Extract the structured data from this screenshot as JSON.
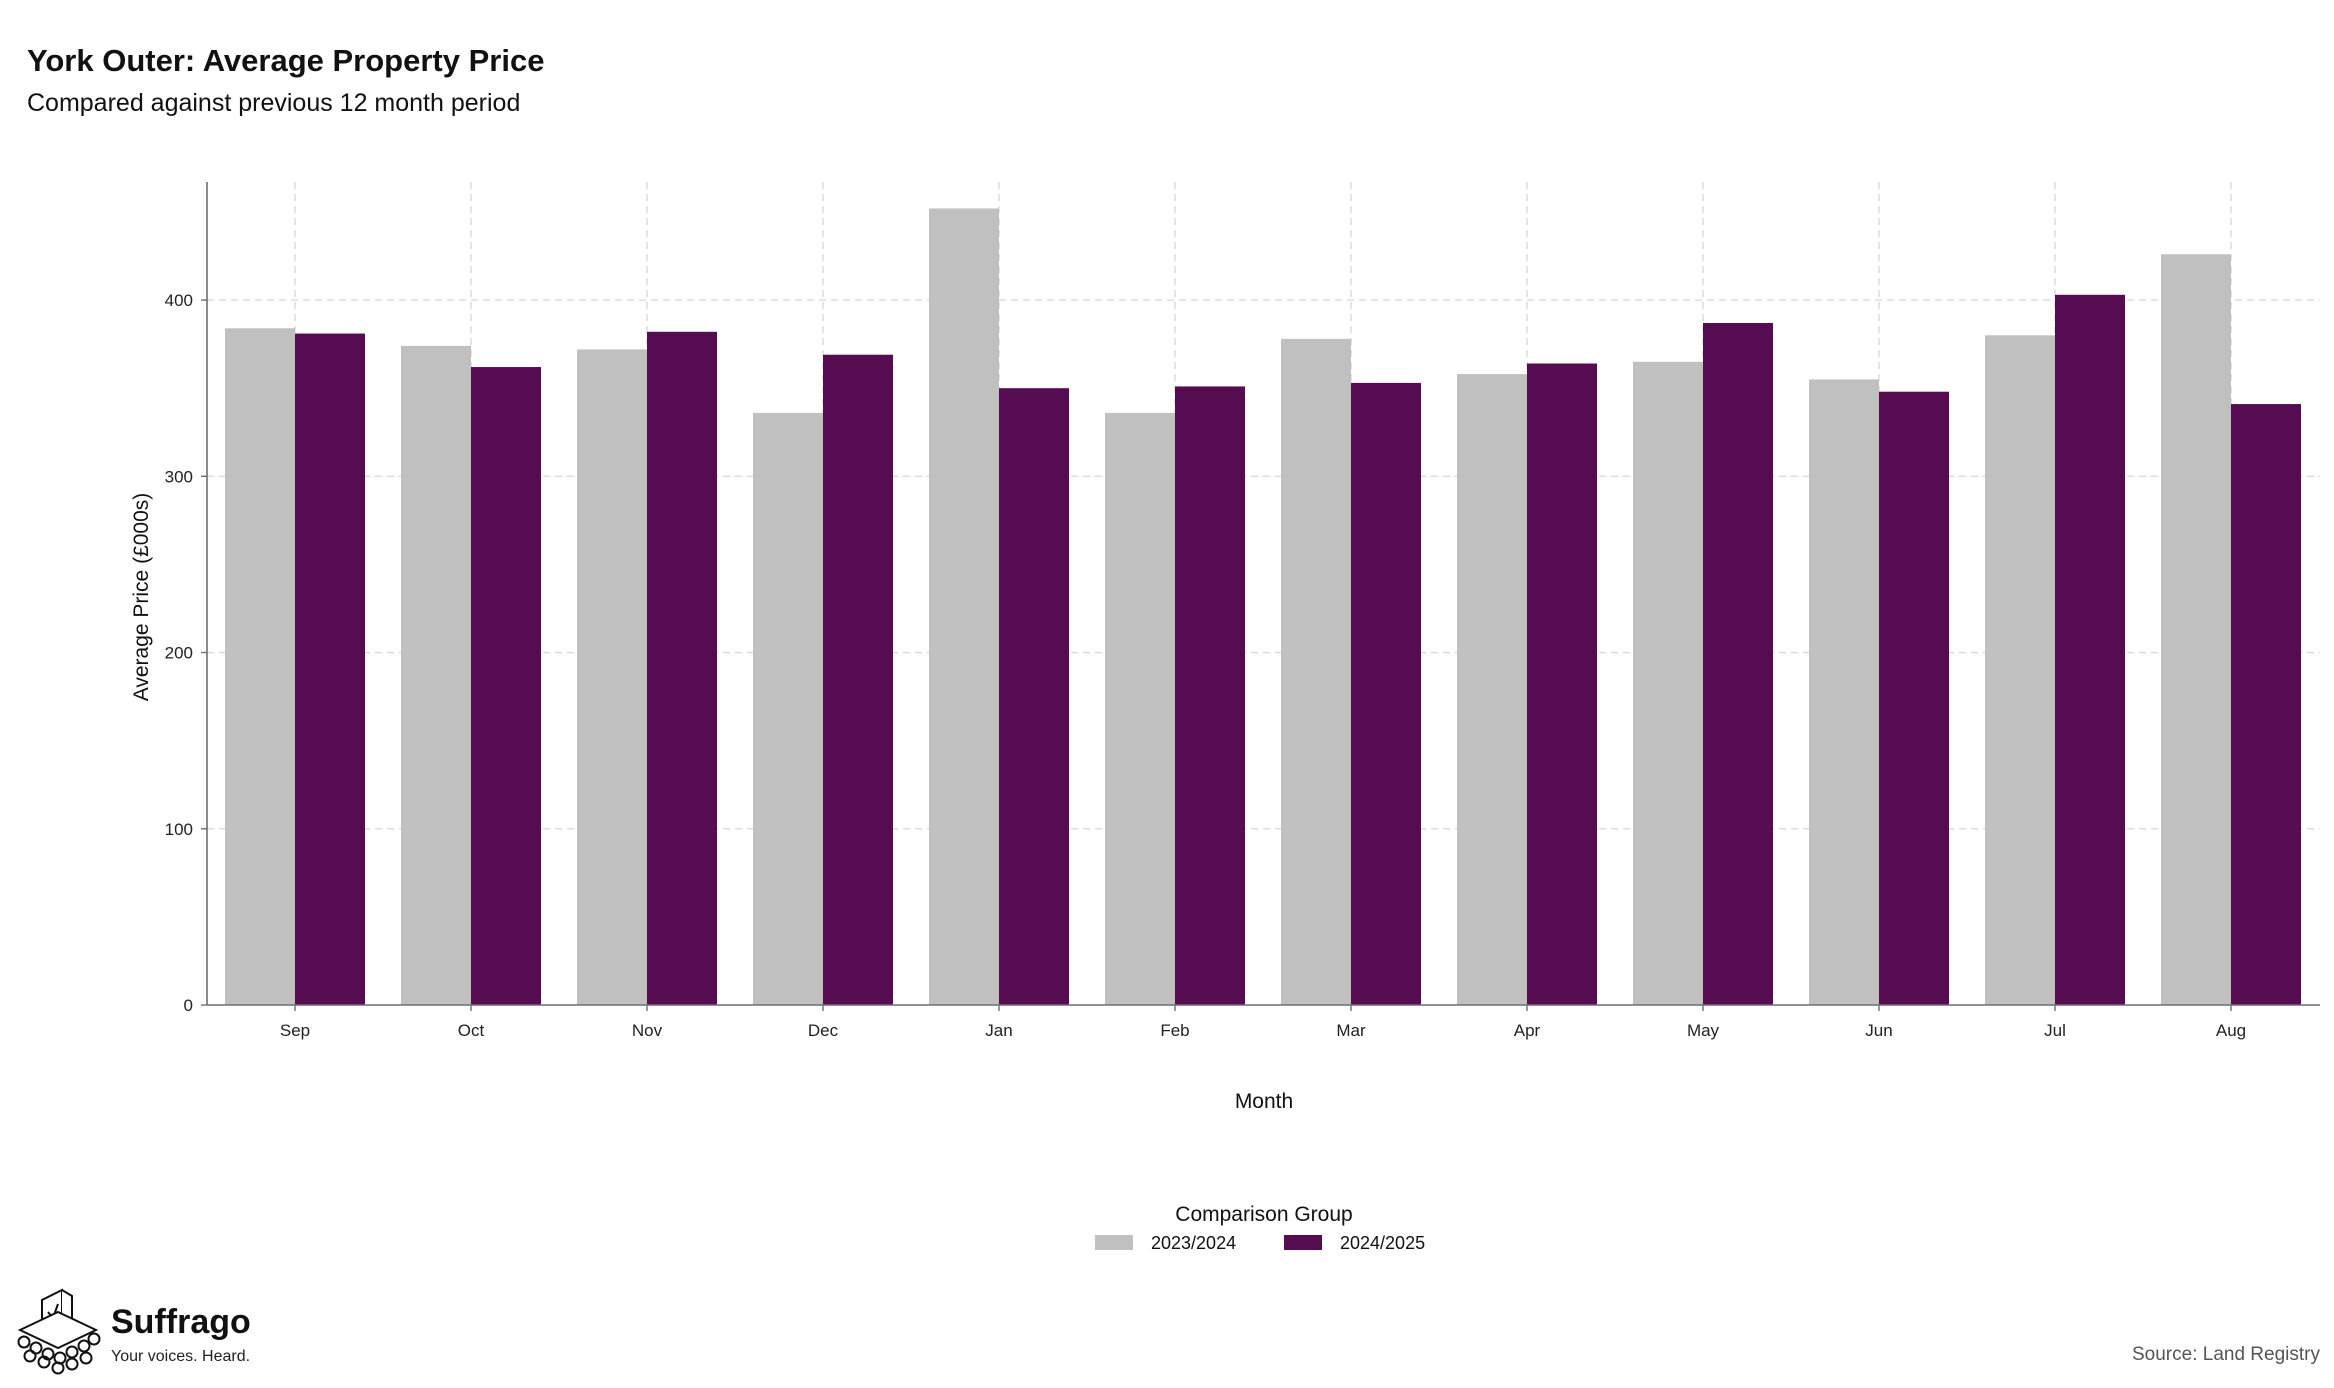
{
  "header": {
    "title": "York Outer: Average Property Price",
    "subtitle": "Compared against previous 12 month period"
  },
  "chart_data": {
    "type": "bar",
    "xlabel": "Month",
    "ylabel": "Average Price (£000s)",
    "categories": [
      "Sep",
      "Oct",
      "Nov",
      "Dec",
      "Jan",
      "Feb",
      "Mar",
      "Apr",
      "May",
      "Jun",
      "Jul",
      "Aug"
    ],
    "series": [
      {
        "name": "2023/2024",
        "color": "#c0c0c0",
        "values": [
          384,
          374,
          372,
          336,
          452,
          336,
          378,
          358,
          365,
          355,
          380,
          426
        ]
      },
      {
        "name": "2024/2025",
        "color": "#560c51",
        "values": [
          381,
          362,
          382,
          369,
          350,
          351,
          353,
          364,
          387,
          348,
          403,
          341
        ]
      }
    ],
    "ylim": [
      0,
      467
    ],
    "yticks": [
      0,
      100,
      200,
      300,
      400
    ],
    "grid": true,
    "legend": {
      "title": "Comparison Group",
      "position": "bottom-center"
    }
  },
  "footer": {
    "brand_name": "Suffrago",
    "brand_tagline": "Your voices. Heard.",
    "source": "Source: Land Registry"
  },
  "icons": {
    "brand_logo": "ballot-box-logo-icon"
  }
}
